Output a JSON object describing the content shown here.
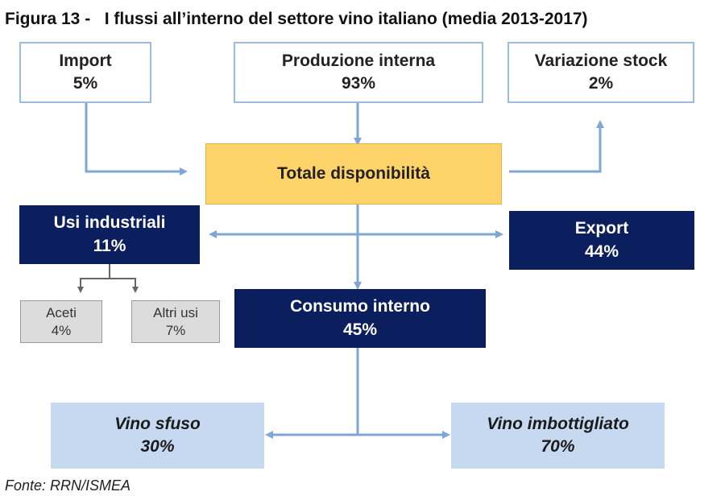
{
  "title": "Figura 13 -   I flussi all’interno del settore vino italiano (media 2013-2017)",
  "nodes": {
    "import": {
      "label": "Import",
      "value": "5%"
    },
    "produzione": {
      "label": "Produzione interna",
      "value": "93%"
    },
    "variazione": {
      "label": "Variazione stock",
      "value": "2%"
    },
    "totale": {
      "label": "Totale disponibilità"
    },
    "usi_industriali": {
      "label": "Usi industriali",
      "value": "11%"
    },
    "export": {
      "label": "Export",
      "value": "44%"
    },
    "aceti": {
      "label": "Aceti",
      "value": "4%"
    },
    "altri_usi": {
      "label": "Altri usi",
      "value": "7%"
    },
    "consumo": {
      "label": "Consumo interno",
      "value": "45%"
    },
    "sfuso": {
      "label": "Vino sfuso",
      "value": "30%"
    },
    "imbottigliato": {
      "label": "Vino imbottigliato",
      "value": "70%"
    }
  },
  "source": "Fonte: RRN/ISMEA",
  "colors": {
    "arrow": "#7fa6d6",
    "gray_arrow": "#666666",
    "navy": "#0b1f5e",
    "yellow": "#fdd36a",
    "light_blue": "#c6d9f1"
  }
}
